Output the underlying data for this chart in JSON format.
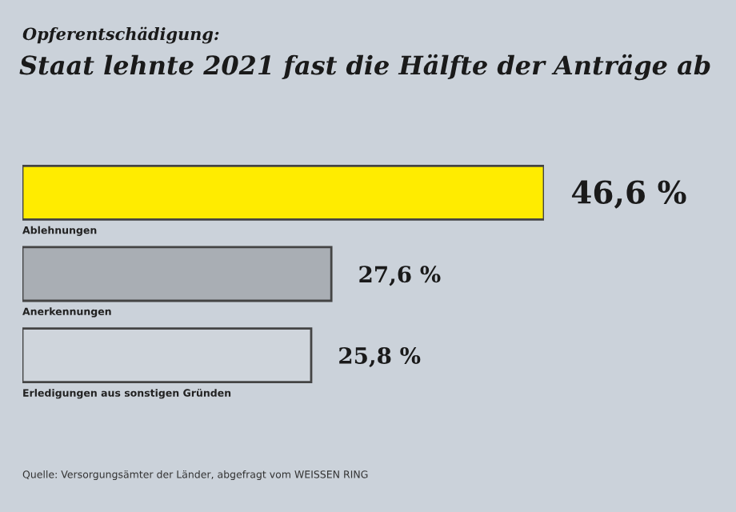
{
  "chart_data": {
    "type": "bar",
    "orientation": "horizontal",
    "subtitle": "Opferentschädigung:",
    "title": "Staat lehnte 2021 fast die Hälfte der Anträge ab",
    "categories": [
      "Ablehnungen",
      "Anerkennungen",
      "Erledigungen aus sonstigen Gründen"
    ],
    "values": [
      46.6,
      27.6,
      25.8
    ],
    "value_labels": [
      "46,6 %",
      "27,6 %",
      "25,8 %"
    ],
    "colors": [
      "#ffec00",
      "#a9aeb4",
      "#cfd5dc"
    ],
    "annotations": [
      "Quelle: Versorgungsämter der Länder, abgefragt vom WEISSEN RING"
    ],
    "legend": false
  }
}
